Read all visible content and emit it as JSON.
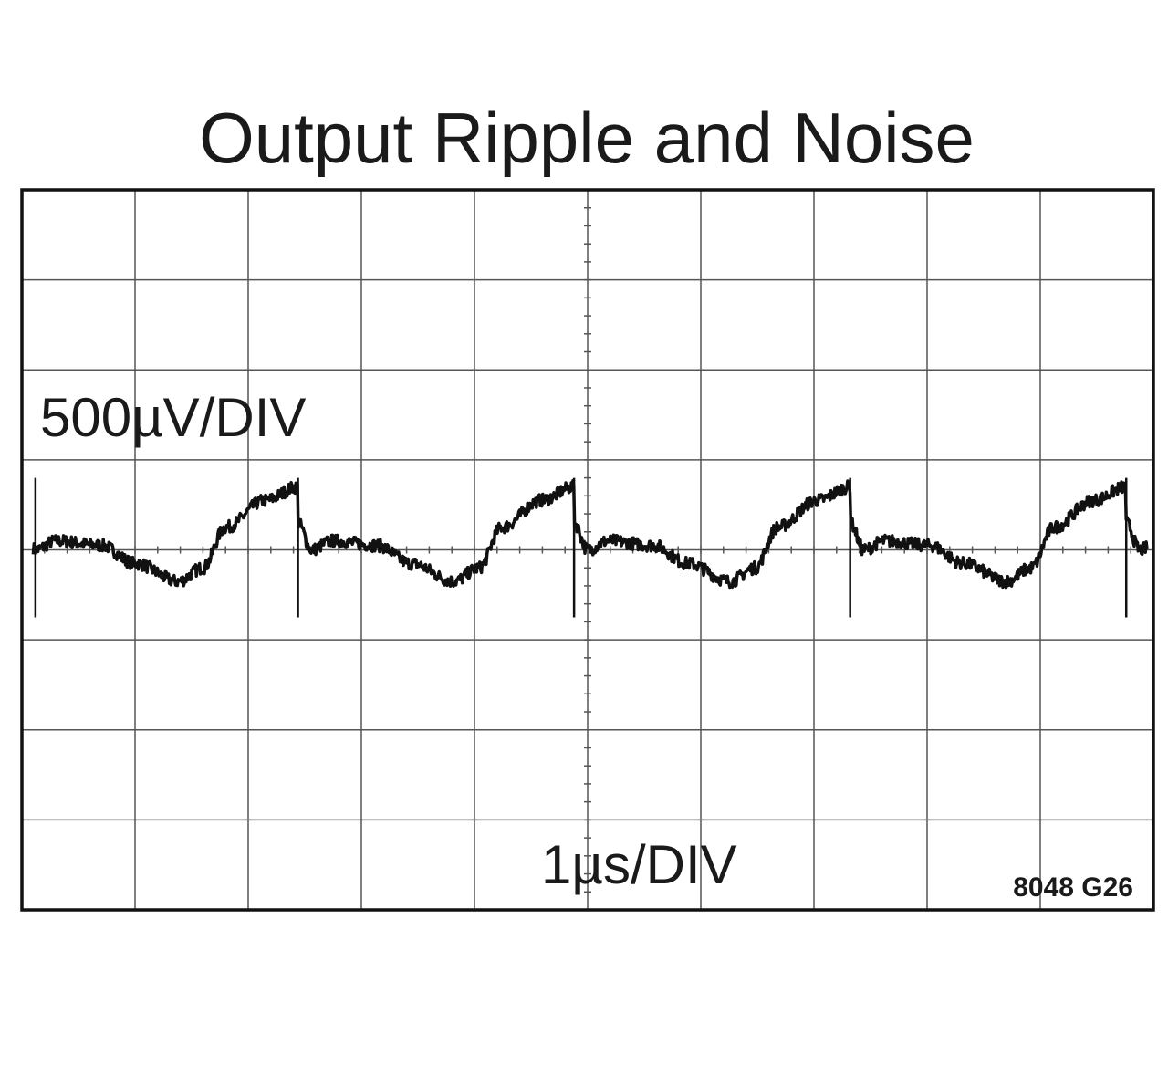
{
  "title": "Output Ripple and Noise",
  "chart_data": {
    "type": "line",
    "title": "Output Ripple and Noise",
    "y_scale_label": "500µV/DIV",
    "x_scale_label": "1µs/DIV",
    "figure_ref": "8048 G26",
    "grid": true,
    "divisions": {
      "x": 10,
      "y": 8
    },
    "xlim_div": [
      0,
      10
    ],
    "ylim_div": [
      -4,
      4
    ],
    "series": [
      {
        "period_div": 2.44,
        "waveform_div": [
          {
            "t": 0.0,
            "v": 0.3
          },
          {
            "t": 0.12,
            "v": 0.0
          },
          {
            "t": 0.3,
            "v": 0.1
          },
          {
            "t": 0.7,
            "v": 0.05
          },
          {
            "t": 1.0,
            "v": -0.15
          },
          {
            "t": 1.38,
            "v": -0.35
          },
          {
            "t": 1.6,
            "v": -0.2
          },
          {
            "t": 1.8,
            "v": 0.25
          },
          {
            "t": 2.15,
            "v": 0.55
          },
          {
            "t": 2.44,
            "v": 0.7
          }
        ],
        "spike_div": {
          "low": -0.75,
          "high": 0.8
        }
      }
    ]
  }
}
